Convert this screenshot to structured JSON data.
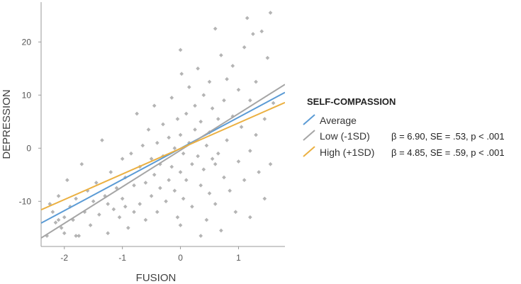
{
  "chart_data": {
    "type": "scatter",
    "xlabel": "FUSION",
    "ylabel": "DEPRESSION",
    "xlim": [
      -2.4,
      1.8
    ],
    "ylim": [
      -18.5,
      27.5
    ],
    "x_ticks": [
      -2,
      -1,
      0,
      1
    ],
    "y_ticks": [
      -10,
      0,
      10,
      20
    ],
    "grid": false,
    "legend_position": "right",
    "legend_title": "SELF-COMPASSION",
    "series": [
      {
        "name": "Average",
        "color": "#5b9bd5",
        "line": {
          "x": [
            -2.4,
            1.8
          ],
          "y": [
            -14.1,
            10.5
          ]
        }
      },
      {
        "name": "Low (-1SD)",
        "color": "#a5a5a5",
        "line": {
          "x": [
            -2.4,
            1.8
          ],
          "y": [
            -16.9,
            12.0
          ]
        },
        "annotation": "β = 6.90, SE = .53, p < .001"
      },
      {
        "name": "High (+1SD)",
        "color": "#ebb041",
        "line": {
          "x": [
            -2.4,
            1.8
          ],
          "y": [
            -11.6,
            8.6
          ]
        },
        "annotation": "β = 4.85, SE = .59, p < .001"
      }
    ],
    "points": [
      [
        -2.3,
        -16.5
      ],
      [
        -2.25,
        -10.5
      ],
      [
        -2.2,
        -12.0
      ],
      [
        -2.15,
        -14.0
      ],
      [
        -2.1,
        -9.0
      ],
      [
        -2.05,
        -15.0
      ],
      [
        -2.0,
        -13.0
      ],
      [
        -2.0,
        -16.0
      ],
      [
        -1.95,
        -6.0
      ],
      [
        -1.9,
        -11.0
      ],
      [
        -1.85,
        -13.5
      ],
      [
        -1.8,
        -9.5
      ],
      [
        -1.75,
        -16.5
      ],
      [
        -1.7,
        -3.0
      ],
      [
        -1.65,
        -12.0
      ],
      [
        -1.6,
        -8.0
      ],
      [
        -1.55,
        -14.5
      ],
      [
        -1.5,
        -10.0
      ],
      [
        -1.45,
        -6.5
      ],
      [
        -1.4,
        -12.5
      ],
      [
        -1.35,
        1.5
      ],
      [
        -1.3,
        -9.0
      ],
      [
        -1.25,
        -16.0
      ],
      [
        -1.2,
        -4.5
      ],
      [
        -1.15,
        -11.5
      ],
      [
        -1.1,
        -7.5
      ],
      [
        -1.05,
        -13.0
      ],
      [
        -1.0,
        -2.0
      ],
      [
        -1.0,
        -9.5
      ],
      [
        -0.95,
        -5.5
      ],
      [
        -0.9,
        -15.0
      ],
      [
        -0.85,
        -1.0
      ],
      [
        -0.8,
        -7.0
      ],
      [
        -0.8,
        -12.0
      ],
      [
        -0.75,
        6.5
      ],
      [
        -0.7,
        -3.5
      ],
      [
        -0.7,
        -10.5
      ],
      [
        -0.65,
        0.5
      ],
      [
        -0.6,
        -6.5
      ],
      [
        -0.6,
        -13.5
      ],
      [
        -0.55,
        3.5
      ],
      [
        -0.5,
        -2.0
      ],
      [
        -0.5,
        -9.0
      ],
      [
        -0.45,
        -5.0
      ],
      [
        -0.45,
        8.0
      ],
      [
        -0.4,
        1.0
      ],
      [
        -0.4,
        -12.0
      ],
      [
        -0.35,
        -3.0
      ],
      [
        -0.35,
        -7.5
      ],
      [
        -0.3,
        4.5
      ],
      [
        -0.3,
        -1.5
      ],
      [
        -0.25,
        -10.0
      ],
      [
        -0.2,
        2.0
      ],
      [
        -0.2,
        -6.0
      ],
      [
        -0.15,
        9.5
      ],
      [
        -0.15,
        -3.5
      ],
      [
        -0.1,
        0.0
      ],
      [
        -0.1,
        -8.0
      ],
      [
        -0.05,
        5.5
      ],
      [
        -0.05,
        -13.0
      ],
      [
        0.0,
        18.5
      ],
      [
        0.0,
        2.5
      ],
      [
        0.0,
        -4.5
      ],
      [
        0.02,
        14.0
      ],
      [
        0.05,
        -1.0
      ],
      [
        0.05,
        -9.5
      ],
      [
        0.1,
        6.5
      ],
      [
        0.1,
        -6.0
      ],
      [
        0.15,
        11.5
      ],
      [
        0.15,
        1.0
      ],
      [
        0.2,
        -3.0
      ],
      [
        0.2,
        -11.0
      ],
      [
        0.25,
        8.0
      ],
      [
        0.25,
        3.5
      ],
      [
        0.3,
        15.0
      ],
      [
        0.3,
        -1.5
      ],
      [
        0.35,
        5.0
      ],
      [
        0.35,
        -7.0
      ],
      [
        0.4,
        10.0
      ],
      [
        0.4,
        -4.0
      ],
      [
        0.45,
        0.5
      ],
      [
        0.45,
        -13.5
      ],
      [
        0.5,
        12.5
      ],
      [
        0.5,
        3.0
      ],
      [
        0.5,
        -8.5
      ],
      [
        0.55,
        -2.0
      ],
      [
        0.55,
        7.5
      ],
      [
        0.6,
        22.5
      ],
      [
        0.6,
        -10.5
      ],
      [
        0.65,
        5.5
      ],
      [
        0.65,
        -1.0
      ],
      [
        0.7,
        17.5
      ],
      [
        0.7,
        -15.5
      ],
      [
        0.75,
        9.0
      ],
      [
        0.75,
        -5.5
      ],
      [
        0.8,
        13.0
      ],
      [
        0.8,
        1.5
      ],
      [
        0.85,
        -8.0
      ],
      [
        0.9,
        15.5
      ],
      [
        0.9,
        6.0
      ],
      [
        0.95,
        -12.0
      ],
      [
        1.0,
        11.0
      ],
      [
        1.0,
        -2.5
      ],
      [
        1.05,
        4.0
      ],
      [
        1.1,
        19.0
      ],
      [
        1.1,
        -6.0
      ],
      [
        1.15,
        24.5
      ],
      [
        1.2,
        9.0
      ],
      [
        1.2,
        -13.0
      ],
      [
        1.25,
        21.5
      ],
      [
        1.3,
        2.5
      ],
      [
        1.3,
        12.5
      ],
      [
        1.35,
        -4.5
      ],
      [
        1.4,
        22.0
      ],
      [
        1.45,
        5.5
      ],
      [
        1.45,
        -9.5
      ],
      [
        1.5,
        17.0
      ],
      [
        1.55,
        25.5
      ],
      [
        1.55,
        -3.0
      ],
      [
        1.6,
        8.5
      ],
      [
        -2.1,
        -13.5
      ],
      [
        -1.8,
        -16.5
      ],
      [
        -1.25,
        -10.5
      ],
      [
        -0.95,
        -11.0
      ],
      [
        0.0,
        -14.5
      ],
      [
        0.6,
        -3.0
      ],
      [
        1.2,
        -0.5
      ],
      [
        0.35,
        -16.5
      ]
    ]
  }
}
